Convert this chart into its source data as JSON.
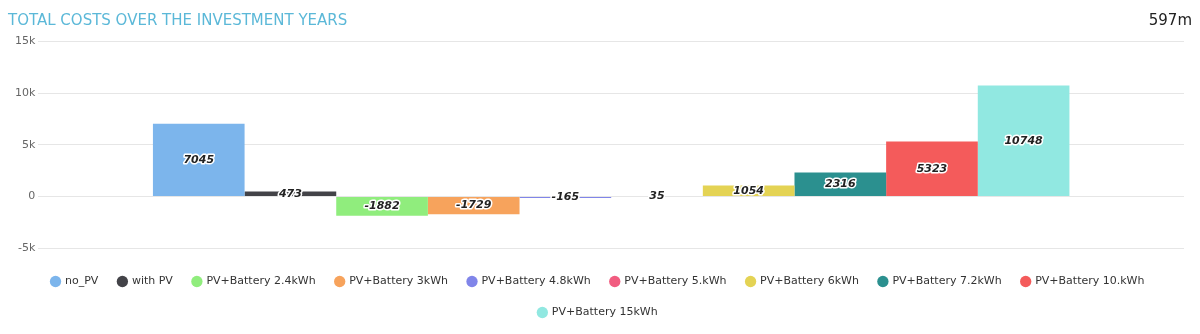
{
  "chart_data": {
    "type": "bar",
    "title": "TOTAL COSTS OVER THE INVESTMENT YEARS",
    "annotations": [
      "597m"
    ],
    "categories": [
      null
    ],
    "series": [
      {
        "name": "no_PV",
        "color": "#7cb5ec",
        "values": [
          7045
        ]
      },
      {
        "name": "with PV",
        "color": "#434348",
        "values": [
          473
        ]
      },
      {
        "name": "PV+Battery 2.4kWh",
        "color": "#90ed7d",
        "values": [
          -1882
        ]
      },
      {
        "name": "PV+Battery 3kWh",
        "color": "#f7a35c",
        "values": [
          -1729
        ]
      },
      {
        "name": "PV+Battery 4.8kWh",
        "color": "#8085e9",
        "values": [
          -165
        ]
      },
      {
        "name": "PV+Battery 5.kWh",
        "color": "#f15c80",
        "values": [
          35
        ]
      },
      {
        "name": "PV+Battery 6kWh",
        "color": "#e4d354",
        "values": [
          1054
        ]
      },
      {
        "name": "PV+Battery 7.2kWh",
        "color": "#2b908f",
        "values": [
          2316
        ]
      },
      {
        "name": "PV+Battery 10.kWh",
        "color": "#f45b5b",
        "values": [
          5323
        ]
      },
      {
        "name": "PV+Battery 15kWh",
        "color": "#91e8e1",
        "values": [
          10748
        ]
      }
    ],
    "ylim": [
      -5000,
      15000
    ],
    "yticks": [
      {
        "value": -5000,
        "label": "-5k"
      },
      {
        "value": 0,
        "label": "0"
      },
      {
        "value": 5000,
        "label": "5k"
      },
      {
        "value": 10000,
        "label": "10k"
      },
      {
        "value": 15000,
        "label": "15k"
      }
    ],
    "grid": "y",
    "legend": "bottom",
    "data_labels": true,
    "tick_labels": "y"
  }
}
